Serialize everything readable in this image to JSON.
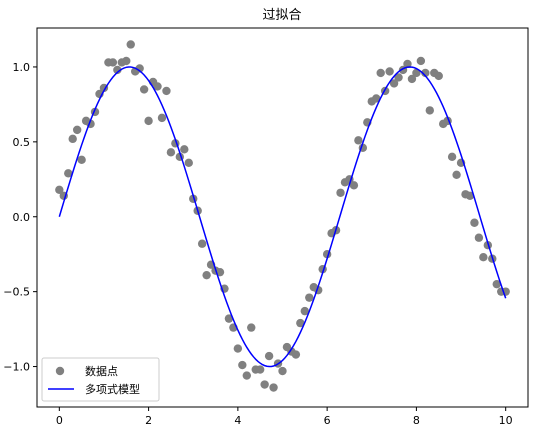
{
  "chart_data": {
    "type": "scatter",
    "title": "过拟合",
    "xlabel": "",
    "ylabel": "",
    "xlim": [
      -0.5,
      10.5
    ],
    "ylim": [
      -1.27,
      1.26
    ],
    "xticks": [
      0,
      2,
      4,
      6,
      8,
      10
    ],
    "xtick_labels": [
      "0",
      "2",
      "4",
      "6",
      "8",
      "10"
    ],
    "yticks": [
      -1.0,
      -0.5,
      0.0,
      0.5,
      1.0
    ],
    "ytick_labels": [
      "−1.0",
      "−0.5",
      "0.0",
      "0.5",
      "1.0"
    ],
    "grid": false,
    "legend_position": "lower-left",
    "series": [
      {
        "name": "数据点",
        "kind": "scatter",
        "color": "#808080",
        "x": [
          0.0,
          0.1,
          0.2,
          0.3,
          0.4,
          0.5,
          0.6,
          0.7,
          0.8,
          0.9,
          1.0,
          1.1,
          1.2,
          1.3,
          1.4,
          1.5,
          1.6,
          1.7,
          1.8,
          1.9,
          2.0,
          2.1,
          2.2,
          2.3,
          2.4,
          2.5,
          2.6,
          2.7,
          2.8,
          2.9,
          3.0,
          3.1,
          3.2,
          3.3,
          3.4,
          3.5,
          3.6,
          3.7,
          3.8,
          3.9,
          4.0,
          4.1,
          4.2,
          4.3,
          4.4,
          4.5,
          4.6,
          4.7,
          4.8,
          4.9,
          5.0,
          5.1,
          5.2,
          5.3,
          5.4,
          5.5,
          5.6,
          5.7,
          5.8,
          5.9,
          6.0,
          6.1,
          6.2,
          6.3,
          6.4,
          6.5,
          6.6,
          6.7,
          6.8,
          6.9,
          7.0,
          7.1,
          7.2,
          7.3,
          7.4,
          7.5,
          7.6,
          7.7,
          7.8,
          7.9,
          8.0,
          8.1,
          8.2,
          8.3,
          8.4,
          8.5,
          8.6,
          8.7,
          8.8,
          8.9,
          9.0,
          9.1,
          9.2,
          9.3,
          9.4,
          9.5,
          9.6,
          9.7,
          9.8,
          9.9,
          10.0
        ],
        "y": [
          0.18,
          0.14,
          0.29,
          0.52,
          0.58,
          0.38,
          0.64,
          0.62,
          0.7,
          0.82,
          0.86,
          1.03,
          1.03,
          0.98,
          1.03,
          1.04,
          1.15,
          0.97,
          0.99,
          0.85,
          0.64,
          0.9,
          0.87,
          0.66,
          0.84,
          0.43,
          0.49,
          0.4,
          0.45,
          0.36,
          0.12,
          0.04,
          -0.18,
          -0.39,
          -0.32,
          -0.36,
          -0.37,
          -0.48,
          -0.68,
          -0.74,
          -0.88,
          -0.99,
          -1.06,
          -0.74,
          -1.02,
          -1.02,
          -1.12,
          -0.93,
          -1.14,
          -0.98,
          -1.03,
          -0.87,
          -0.9,
          -0.92,
          -0.71,
          -0.63,
          -0.54,
          -0.47,
          -0.49,
          -0.35,
          -0.25,
          -0.11,
          -0.09,
          0.16,
          0.23,
          0.25,
          0.21,
          0.51,
          0.46,
          0.63,
          0.77,
          0.79,
          0.96,
          0.84,
          0.97,
          0.89,
          0.93,
          0.98,
          1.02,
          0.92,
          0.96,
          1.04,
          0.96,
          0.71,
          0.96,
          0.94,
          0.62,
          0.64,
          0.4,
          0.28,
          0.36,
          0.15,
          0.14,
          -0.04,
          -0.14,
          -0.27,
          -0.19,
          -0.28,
          -0.45,
          -0.5,
          -0.5
        ]
      },
      {
        "name": "多项式模型",
        "kind": "line",
        "color": "#0000ff",
        "function": "sin",
        "x_range": [
          0,
          10
        ],
        "samples": 200
      }
    ]
  }
}
